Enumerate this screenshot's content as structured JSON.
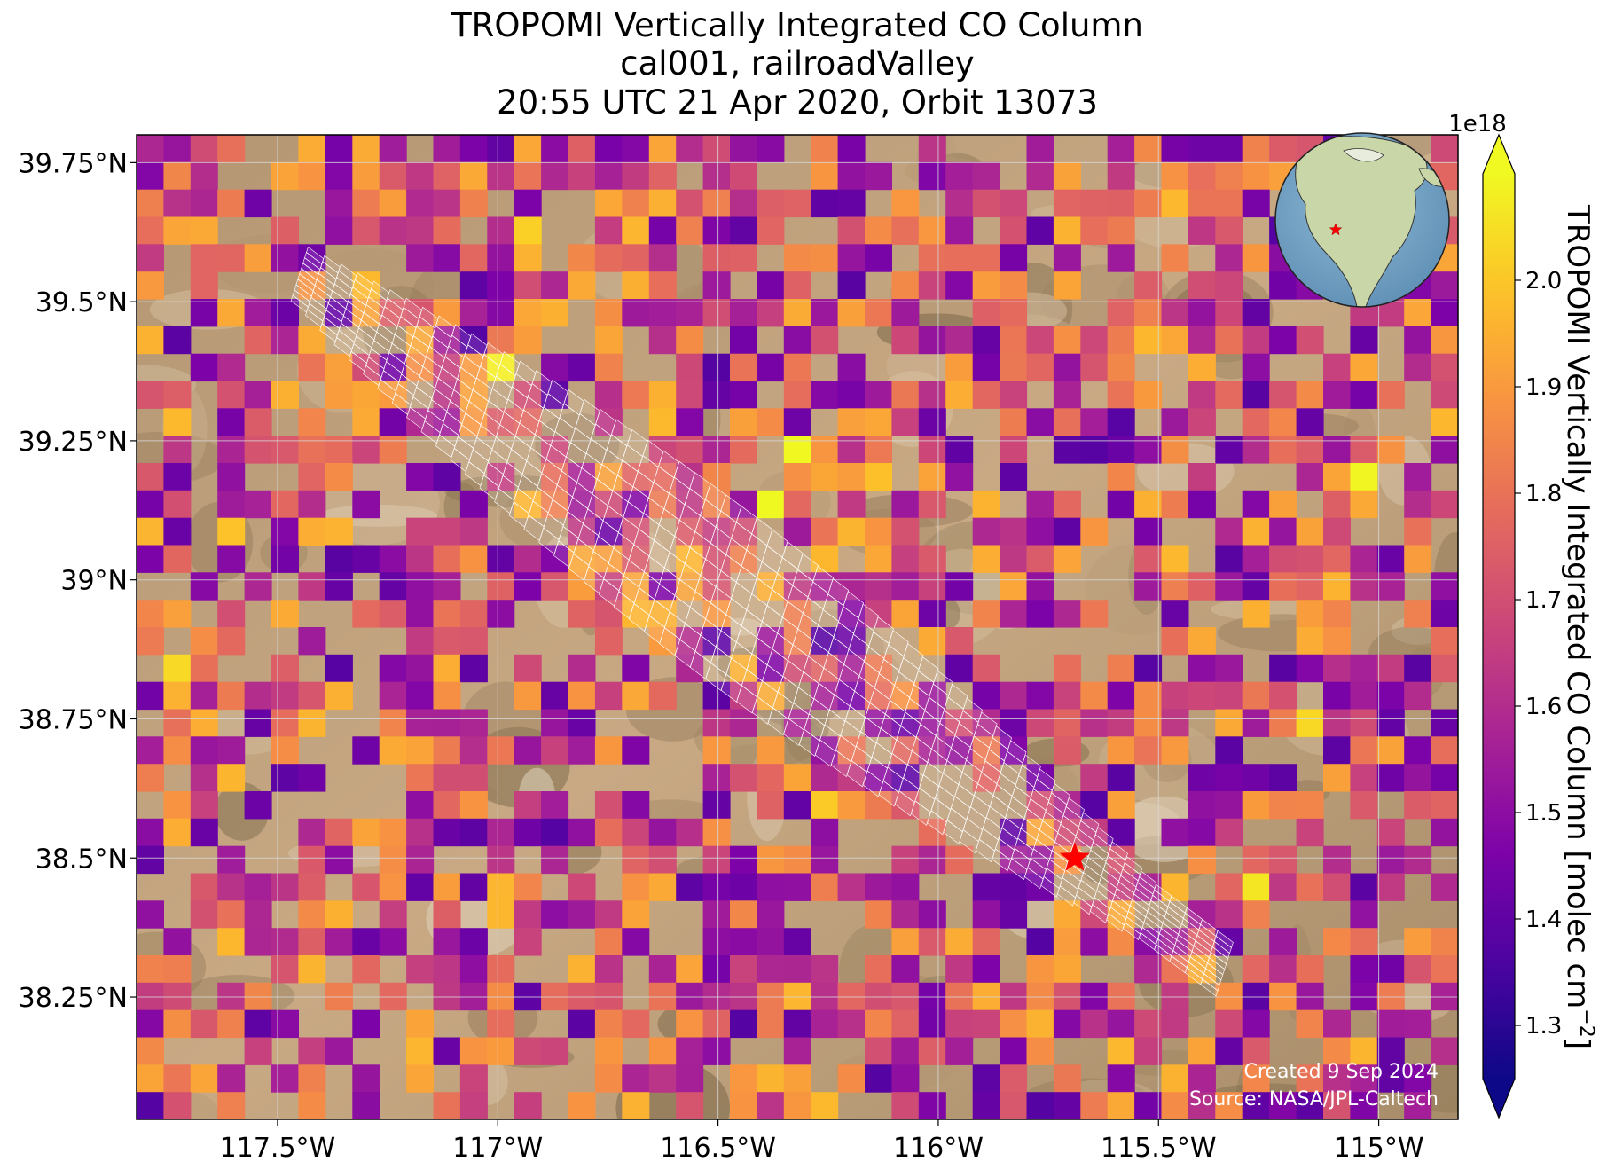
{
  "title": {
    "line1": "TROPOMI Vertically Integrated CO Column",
    "line2": "cal001, railroadValley",
    "line3": "20:55 UTC 21 Apr 2020, Orbit 13073"
  },
  "map": {
    "lon_range": [
      -117.82,
      -114.82
    ],
    "lat_range": [
      38.03,
      39.8
    ],
    "lon_ticks": [
      {
        "value": -117.5,
        "label": "117.5°W"
      },
      {
        "value": -117.0,
        "label": "117°W"
      },
      {
        "value": -116.5,
        "label": "116.5°W"
      },
      {
        "value": -116.0,
        "label": "116°W"
      },
      {
        "value": -115.5,
        "label": "115.5°W"
      },
      {
        "value": -115.0,
        "label": "115°W"
      }
    ],
    "lat_ticks": [
      {
        "value": 39.75,
        "label": "39.75°N"
      },
      {
        "value": 39.5,
        "label": "39.5°N"
      },
      {
        "value": 39.25,
        "label": "39.25°N"
      },
      {
        "value": 39.0,
        "label": "39°N"
      },
      {
        "value": 38.75,
        "label": "38.75°N"
      },
      {
        "value": 38.5,
        "label": "38.5°N"
      },
      {
        "value": 38.25,
        "label": "38.25°N"
      }
    ],
    "site_marker": {
      "lon": -115.69,
      "lat": 38.5,
      "color": "#ff0000",
      "icon": "star-icon"
    },
    "target_swath": {
      "start": {
        "lon": -117.45,
        "lat": 39.55
      },
      "end": {
        "lon": -115.35,
        "lat": 38.3
      },
      "color": "#ffffff"
    },
    "background": "satellite imagery of desert terrain",
    "gridlines": true
  },
  "colorbar": {
    "label": "TROPOMI Vertically Integrated CO Column [molec cm",
    "label_superscript": "−2",
    "label_close": "]",
    "exponent": "1e18",
    "range": [
      1.25,
      2.1
    ],
    "colormap": "plasma",
    "extend": "both",
    "ticks": [
      {
        "value": 1.3,
        "label": "1.3"
      },
      {
        "value": 1.4,
        "label": "1.4"
      },
      {
        "value": 1.5,
        "label": "1.5"
      },
      {
        "value": 1.6,
        "label": "1.6"
      },
      {
        "value": 1.7,
        "label": "1.7"
      },
      {
        "value": 1.8,
        "label": "1.8"
      },
      {
        "value": 1.9,
        "label": "1.9"
      },
      {
        "value": 2.0,
        "label": "2.0"
      }
    ]
  },
  "inset_globe": {
    "marker_color": "#ff0000",
    "region": "North America",
    "icon": "globe-icon"
  },
  "credits": {
    "created": "Created 9 Sep 2024",
    "source": "Source: NASA/JPL-Caltech"
  }
}
